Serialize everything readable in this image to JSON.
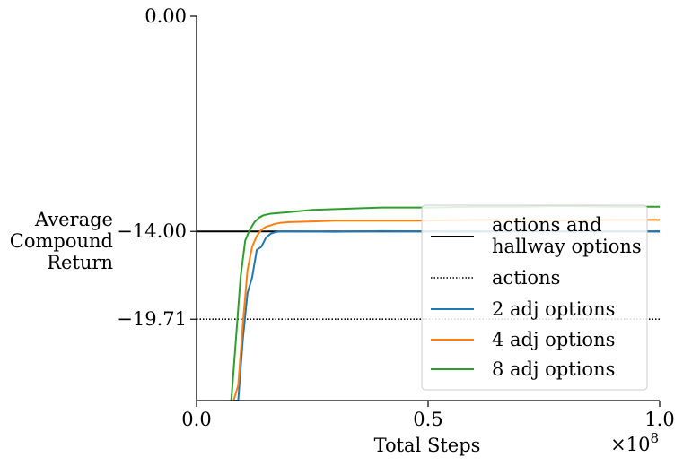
{
  "chart_data": {
    "type": "line",
    "xlabel": "Total Steps",
    "x_multiplier_label": "×10",
    "x_multiplier_exponent": "8",
    "ylabel": [
      "Average",
      "Compound",
      "Return"
    ],
    "xlim": [
      0.0,
      1.0
    ],
    "ylim": [
      -25.0,
      0.0
    ],
    "xticks": [
      {
        "value": 0.0,
        "label": "0.0"
      },
      {
        "value": 0.5,
        "label": "0.5"
      },
      {
        "value": 1.0,
        "label": "1.0"
      }
    ],
    "yticks": [
      {
        "value": 0.0,
        "label": "0.00"
      },
      {
        "value": -14.0,
        "label": "−14.00"
      },
      {
        "value": -19.71,
        "label": "−19.71"
      }
    ],
    "grid": false,
    "legend_position": "lower-right",
    "reference_lines": [
      {
        "name": "actions and hallway options",
        "legend_lines": [
          "actions and",
          "hallway options"
        ],
        "y": -14.0,
        "color": "#000000",
        "style": "solid"
      },
      {
        "name": "actions",
        "legend_lines": [
          "actions"
        ],
        "y": -19.71,
        "color": "#000000",
        "style": "dotted"
      }
    ],
    "series": [
      {
        "name": "2 adj options",
        "color": "#1f77b4",
        "x": [
          0.08,
          0.09,
          0.1,
          0.11,
          0.12,
          0.13,
          0.14,
          0.15,
          0.16,
          0.17,
          0.18,
          0.19,
          0.2,
          0.3,
          0.4,
          0.5,
          0.6,
          0.7,
          0.8,
          0.9,
          1.0
        ],
        "y": [
          -25.0,
          -25.0,
          -21.0,
          -18.0,
          -17.0,
          -15.2,
          -15.0,
          -14.4,
          -14.15,
          -14.05,
          -14.0,
          -14.0,
          -14.0,
          -14.02,
          -13.98,
          -14.0,
          -14.02,
          -13.98,
          -14.0,
          -14.01,
          -14.0
        ]
      },
      {
        "name": "4 adj options",
        "color": "#ff7f0e",
        "x": [
          0.08,
          0.09,
          0.1,
          0.11,
          0.12,
          0.13,
          0.14,
          0.15,
          0.16,
          0.17,
          0.18,
          0.2,
          0.25,
          0.3,
          0.4,
          0.5,
          0.6,
          0.7,
          0.8,
          0.9,
          1.0
        ],
        "y": [
          -25.0,
          -24.0,
          -20.0,
          -16.5,
          -15.0,
          -14.3,
          -13.9,
          -13.7,
          -13.6,
          -13.5,
          -13.45,
          -13.4,
          -13.35,
          -13.3,
          -13.3,
          -13.3,
          -13.25,
          -13.25,
          -13.3,
          -13.25,
          -13.25
        ]
      },
      {
        "name": "8 adj options",
        "color": "#2ca02c",
        "x": [
          0.075,
          0.085,
          0.095,
          0.105,
          0.115,
          0.125,
          0.135,
          0.145,
          0.16,
          0.18,
          0.2,
          0.25,
          0.3,
          0.4,
          0.5,
          0.6,
          0.7,
          0.8,
          0.9,
          1.0
        ],
        "y": [
          -25.0,
          -21.0,
          -17.0,
          -14.6,
          -13.9,
          -13.4,
          -13.1,
          -12.95,
          -12.85,
          -12.8,
          -12.75,
          -12.6,
          -12.55,
          -12.45,
          -12.45,
          -12.4,
          -12.4,
          -12.35,
          -12.4,
          -12.4
        ]
      }
    ]
  }
}
